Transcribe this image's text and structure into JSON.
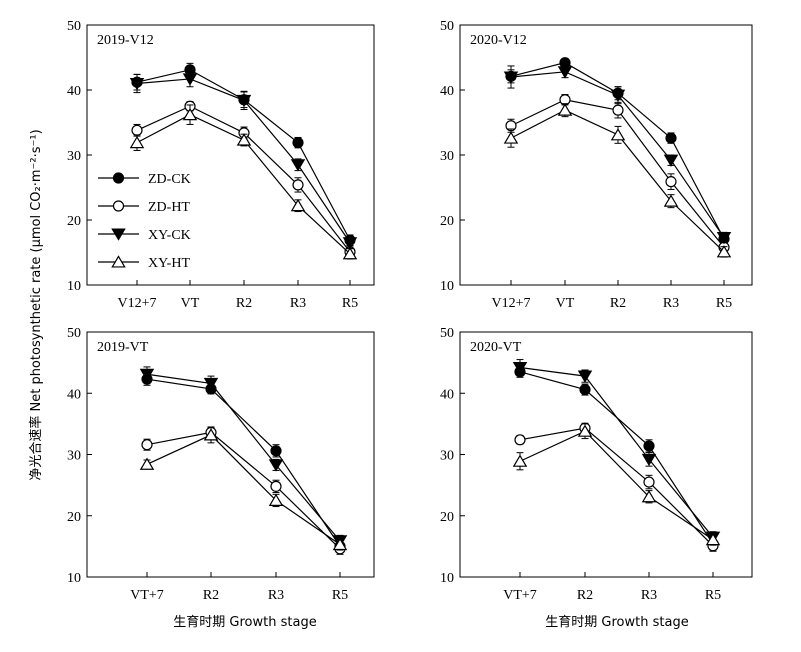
{
  "figure": {
    "xlabel": "生育时期 Growth stage",
    "ylabel": "净光合速率 Net photosynthetic rate (μmol CO₂·m⁻²·s⁻¹)"
  },
  "legend": [
    {
      "name": "ZD-CK",
      "marker": "circle",
      "filled": true
    },
    {
      "name": "ZD-HT",
      "marker": "circle",
      "filled": false
    },
    {
      "name": "XY-CK",
      "marker": "triangle-down",
      "filled": true
    },
    {
      "name": "XY-HT",
      "marker": "triangle-up",
      "filled": false
    }
  ],
  "chart_data": [
    {
      "type": "line",
      "title": "2019-V12",
      "categories": [
        "V12+7",
        "VT",
        "R2",
        "R3",
        "R5"
      ],
      "ylim": [
        10,
        50
      ],
      "yticks": [
        10,
        20,
        30,
        40,
        50
      ],
      "series": [
        {
          "name": "ZD-CK",
          "values": [
            41.2,
            43.1,
            38.5,
            31.9,
            16.9
          ],
          "errors": [
            1.2,
            1.0,
            1.2,
            0.8,
            0.8
          ]
        },
        {
          "name": "ZD-HT",
          "values": [
            33.8,
            37.5,
            33.4,
            25.4,
            15.1
          ],
          "errors": [
            0.9,
            0.7,
            0.9,
            1.1,
            0.9
          ]
        },
        {
          "name": "XY-CK",
          "values": [
            41.0,
            41.7,
            38.4,
            28.5,
            16.5
          ],
          "errors": [
            1.4,
            1.2,
            1.4,
            0.9,
            0.9
          ]
        },
        {
          "name": "XY-HT",
          "values": [
            31.9,
            36.2,
            32.3,
            22.2,
            14.8
          ],
          "errors": [
            1.2,
            1.5,
            0.9,
            0.9,
            0.8
          ]
        }
      ]
    },
    {
      "type": "line",
      "title": "2020-V12",
      "categories": [
        "V12+7",
        "VT",
        "R2",
        "R3",
        "R5"
      ],
      "ylim": [
        10,
        50
      ],
      "yticks": [
        10,
        20,
        30,
        40,
        50
      ],
      "series": [
        {
          "name": "ZD-CK",
          "values": [
            42.1,
            44.2,
            39.5,
            32.6,
            17.1
          ],
          "errors": [
            1.0,
            0.6,
            1.0,
            0.8,
            0.9
          ]
        },
        {
          "name": "ZD-HT",
          "values": [
            34.5,
            38.5,
            36.9,
            25.9,
            15.8
          ],
          "errors": [
            1.0,
            0.8,
            1.2,
            1.2,
            0.9
          ]
        },
        {
          "name": "XY-CK",
          "values": [
            42.0,
            42.8,
            39.2,
            29.2,
            17.3
          ],
          "errors": [
            1.7,
            0.9,
            1.3,
            0.8,
            0.8
          ]
        },
        {
          "name": "XY-HT",
          "values": [
            32.6,
            36.9,
            33.1,
            22.9,
            15.1
          ],
          "errors": [
            1.4,
            1.0,
            1.3,
            1.0,
            0.8
          ]
        }
      ]
    },
    {
      "type": "line",
      "title": "2019-VT",
      "categories": [
        "VT+7",
        "R2",
        "R3",
        "R5"
      ],
      "ylim": [
        10,
        50
      ],
      "yticks": [
        10,
        20,
        30,
        40,
        50
      ],
      "series": [
        {
          "name": "ZD-CK",
          "values": [
            42.3,
            40.7,
            30.6,
            15.0
          ],
          "errors": [
            1.0,
            0.8,
            1.0,
            0.9
          ]
        },
        {
          "name": "ZD-HT",
          "values": [
            31.6,
            33.6,
            24.8,
            14.6
          ],
          "errors": [
            0.9,
            0.8,
            1.0,
            0.9
          ]
        },
        {
          "name": "XY-CK",
          "values": [
            43.1,
            41.6,
            28.3,
            15.9
          ],
          "errors": [
            1.2,
            1.2,
            0.9,
            0.9
          ]
        },
        {
          "name": "XY-HT",
          "values": [
            28.4,
            33.2,
            22.5,
            15.3
          ],
          "errors": [
            0.7,
            1.3,
            1.0,
            0.9
          ]
        }
      ]
    },
    {
      "type": "line",
      "title": "2020-VT",
      "categories": [
        "VT+7",
        "R2",
        "R3",
        "R5"
      ],
      "ylim": [
        10,
        50
      ],
      "yticks": [
        10,
        20,
        30,
        40,
        50
      ],
      "series": [
        {
          "name": "ZD-CK",
          "values": [
            43.5,
            40.6,
            31.4,
            15.4
          ],
          "errors": [
            0.9,
            0.9,
            1.0,
            1.0
          ]
        },
        {
          "name": "ZD-HT",
          "values": [
            32.4,
            34.3,
            25.5,
            15.1
          ],
          "errors": [
            0.7,
            0.8,
            1.1,
            0.9
          ]
        },
        {
          "name": "XY-CK",
          "values": [
            44.2,
            42.8,
            29.2,
            16.5
          ],
          "errors": [
            1.3,
            1.0,
            1.1,
            0.9
          ]
        },
        {
          "name": "XY-HT",
          "values": [
            28.9,
            33.8,
            23.1,
            16.1
          ],
          "errors": [
            1.4,
            1.2,
            1.0,
            0.9
          ]
        }
      ]
    }
  ]
}
